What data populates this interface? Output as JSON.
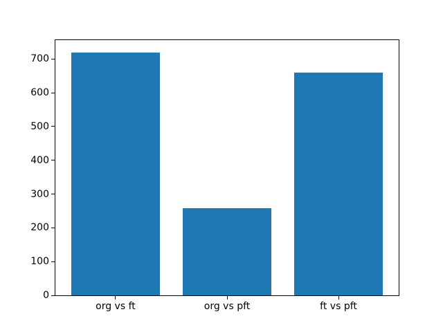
{
  "figure": {
    "background": "#ffffff"
  },
  "chart_data": {
    "type": "bar",
    "categories": [
      "org vs ft",
      "org vs pft",
      "ft vs pft"
    ],
    "values": [
      720,
      258,
      660
    ],
    "title": "",
    "xlabel": "",
    "ylabel": "",
    "yticks": [
      0,
      100,
      200,
      300,
      400,
      500,
      600,
      700
    ],
    "ylim": [
      0,
      756
    ],
    "xlim": [
      -0.54,
      2.54
    ],
    "bar_width": 0.8,
    "bar_color": "#1f77b4",
    "axis_color": "#000000",
    "tick_label_color": "#000000",
    "grid": false,
    "legend": null
  }
}
